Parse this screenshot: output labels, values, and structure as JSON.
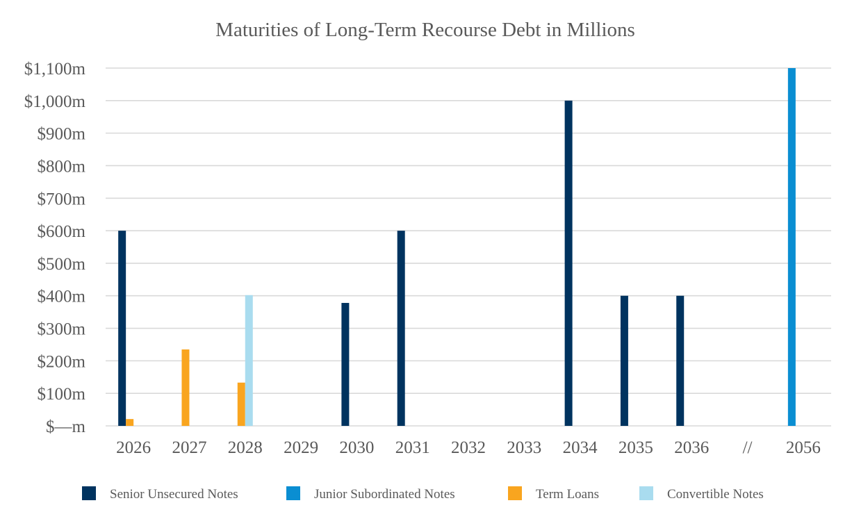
{
  "chart_data": {
    "type": "bar",
    "title": "Maturities of Long-Term Recourse Debt in Millions",
    "xlabel": "",
    "ylabel": "",
    "ylim": [
      0,
      1100
    ],
    "yticks": [
      0,
      100,
      200,
      300,
      400,
      500,
      600,
      700,
      800,
      900,
      1000,
      1100
    ],
    "ytick_labels": [
      "$—m",
      "$100m",
      "$200m",
      "$300m",
      "$400m",
      "$500m",
      "$600m",
      "$700m",
      "$800m",
      "$900m",
      "$1,000m",
      "$1,100m"
    ],
    "categories": [
      "2026",
      "2027",
      "2028",
      "2029",
      "2030",
      "2031",
      "2032",
      "2033",
      "2034",
      "2035",
      "2036",
      "//",
      "2056"
    ],
    "series": [
      {
        "name": "Senior Unsecured Notes",
        "color": "#00335f",
        "values": [
          600,
          0,
          0,
          0,
          378,
          600,
          0,
          0,
          1000,
          400,
          400,
          0,
          0
        ]
      },
      {
        "name": "Junior Subordinated Notes",
        "color": "#0a8ed2",
        "values": [
          0,
          0,
          0,
          0,
          0,
          0,
          0,
          0,
          0,
          0,
          0,
          0,
          1100
        ]
      },
      {
        "name": "Term Loans",
        "color": "#f9a51f",
        "values": [
          21,
          235,
          133,
          0,
          0,
          0,
          0,
          0,
          0,
          0,
          0,
          0,
          0
        ]
      },
      {
        "name": "Convertible Notes",
        "color": "#a9dcef",
        "values": [
          0,
          0,
          402,
          0,
          0,
          0,
          0,
          0,
          0,
          0,
          0,
          0,
          0
        ]
      }
    ],
    "grid": true,
    "legend": "bottom"
  }
}
